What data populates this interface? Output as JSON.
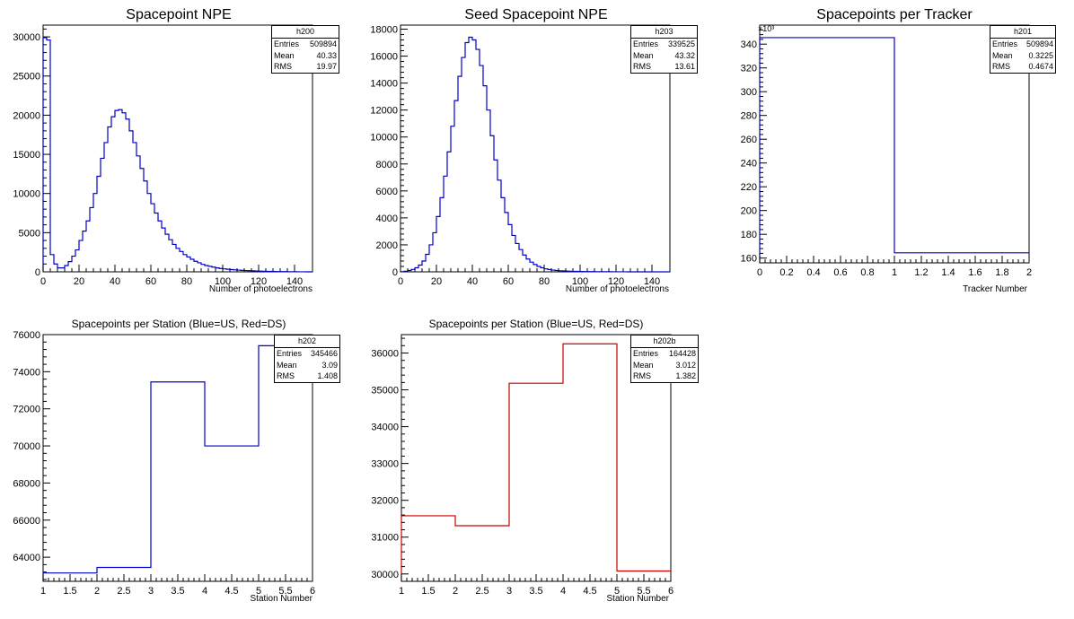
{
  "chart_data": [
    {
      "id": "h200",
      "type": "histogram",
      "title": "Spacepoint NPE",
      "xlabel": "Number of photoelectrons",
      "ylabel": "",
      "xlim": [
        0,
        150
      ],
      "ylim": [
        0,
        31500
      ],
      "xticks": [
        0,
        20,
        40,
        60,
        80,
        100,
        120,
        140
      ],
      "yticks": [
        0,
        5000,
        10000,
        15000,
        20000,
        25000,
        30000
      ],
      "xtick_labels": [
        "0",
        "20",
        "40",
        "60",
        "80",
        "100",
        "120",
        "140"
      ],
      "ytick_labels": [
        "0",
        "5000",
        "10000",
        "15000",
        "20000",
        "25000",
        "30000"
      ],
      "bin_width": 2,
      "color": "#0000cc",
      "values": [
        29900,
        29600,
        2200,
        1000,
        500,
        500,
        800,
        1300,
        2000,
        2800,
        4000,
        5200,
        6500,
        8200,
        10000,
        12200,
        14500,
        16500,
        18500,
        19800,
        20600,
        20700,
        20300,
        19500,
        18000,
        16500,
        14800,
        13200,
        11600,
        10000,
        8700,
        7500,
        6500,
        5600,
        4800,
        4100,
        3500,
        3000,
        2600,
        2200,
        1900,
        1600,
        1350,
        1150,
        950,
        800,
        700,
        600,
        500,
        430,
        380,
        330,
        290,
        250,
        220,
        190,
        165,
        145,
        125,
        105,
        90,
        78,
        66,
        56,
        46,
        38,
        32,
        26,
        20,
        15,
        11,
        7,
        5,
        3,
        2
      ],
      "stats": {
        "name": "h200",
        "entries": "509894",
        "mean": "40.33",
        "rms": "19.97"
      }
    },
    {
      "id": "h203",
      "type": "histogram",
      "title": "Seed Spacepoint NPE",
      "xlabel": "Number of photoelectrons",
      "ylabel": "",
      "xlim": [
        0,
        150
      ],
      "ylim": [
        0,
        18300
      ],
      "xticks": [
        0,
        20,
        40,
        60,
        80,
        100,
        120,
        140
      ],
      "yticks": [
        0,
        2000,
        4000,
        6000,
        8000,
        10000,
        12000,
        14000,
        16000,
        18000
      ],
      "xtick_labels": [
        "0",
        "20",
        "40",
        "60",
        "80",
        "100",
        "120",
        "140"
      ],
      "ytick_labels": [
        "0",
        "2000",
        "4000",
        "6000",
        "8000",
        "10000",
        "12000",
        "14000",
        "16000",
        "18000"
      ],
      "bin_width": 2,
      "color": "#0000cc",
      "values": [
        10,
        40,
        100,
        180,
        300,
        500,
        800,
        1300,
        2000,
        2900,
        4100,
        5500,
        7100,
        8900,
        10800,
        12700,
        14500,
        15900,
        17000,
        17400,
        17200,
        16500,
        15300,
        13800,
        12000,
        10100,
        8300,
        6800,
        5500,
        4400,
        3500,
        2700,
        2100,
        1650,
        1250,
        950,
        720,
        540,
        400,
        300,
        220,
        170,
        130,
        100,
        80,
        65,
        55,
        45,
        38,
        32,
        26,
        22,
        18,
        15,
        12,
        10,
        8,
        7,
        6,
        5,
        4,
        3,
        3,
        2,
        2,
        2,
        1,
        1,
        1,
        1,
        0,
        0,
        0,
        0,
        0
      ],
      "stats": {
        "name": "h203",
        "entries": "339525",
        "mean": "43.32",
        "rms": "13.61"
      }
    },
    {
      "id": "h201",
      "type": "histogram",
      "title": "Spacepoints per Tracker",
      "xlabel": "Tracker Number",
      "ylabel": "",
      "xlim": [
        0,
        2
      ],
      "ylim": [
        156,
        356
      ],
      "yscale_label": "×10³",
      "xticks": [
        0,
        0.2,
        0.4,
        0.6,
        0.8,
        1,
        1.2,
        1.4,
        1.6,
        1.8,
        2
      ],
      "yticks": [
        160,
        180,
        200,
        220,
        240,
        260,
        280,
        300,
        320,
        340
      ],
      "xtick_labels": [
        "0",
        "0.2",
        "0.4",
        "0.6",
        "0.8",
        "1",
        "1.2",
        "1.4",
        "1.6",
        "1.8",
        "2"
      ],
      "ytick_labels": [
        "160",
        "180",
        "200",
        "220",
        "240",
        "260",
        "280",
        "300",
        "320",
        "340"
      ],
      "bin_width": 1,
      "color": "#0000cc",
      "values": [
        345.466,
        164.428
      ],
      "stats": {
        "name": "h201",
        "entries": "509894",
        "mean": "0.3225",
        "rms": "0.4674"
      }
    },
    {
      "id": "h202",
      "type": "histogram",
      "title": "Spacepoints per Station (Blue=US, Red=DS)",
      "xlabel": "Station Number",
      "ylabel": "",
      "xlim": [
        1,
        6
      ],
      "ylim": [
        62700,
        76000
      ],
      "xticks": [
        1,
        1.5,
        2,
        2.5,
        3,
        3.5,
        4,
        4.5,
        5,
        5.5,
        6
      ],
      "yticks": [
        64000,
        66000,
        68000,
        70000,
        72000,
        74000,
        76000
      ],
      "xtick_labels": [
        "1",
        "1.5",
        "2",
        "2.5",
        "3",
        "3.5",
        "4",
        "4.5",
        "5",
        "5.5",
        "6"
      ],
      "ytick_labels": [
        "64000",
        "66000",
        "68000",
        "70000",
        "72000",
        "74000",
        "76000"
      ],
      "bin_width": 1,
      "color": "#0000cc",
      "values": [
        63150,
        63450,
        73450,
        70000,
        75400
      ],
      "stats": {
        "name": "h202",
        "entries": "345466",
        "mean": "3.09",
        "rms": "1.408"
      }
    },
    {
      "id": "h202b",
      "type": "histogram",
      "title": "Spacepoints per Station (Blue=US, Red=DS)",
      "xlabel": "Station Number",
      "ylabel": "",
      "xlim": [
        1,
        6
      ],
      "ylim": [
        29800,
        36500
      ],
      "xticks": [
        1,
        1.5,
        2,
        2.5,
        3,
        3.5,
        4,
        4.5,
        5,
        5.5,
        6
      ],
      "yticks": [
        30000,
        31000,
        32000,
        33000,
        34000,
        35000,
        36000
      ],
      "xtick_labels": [
        "1",
        "1.5",
        "2",
        "2.5",
        "3",
        "3.5",
        "4",
        "4.5",
        "5",
        "5.5",
        "6"
      ],
      "ytick_labels": [
        "30000",
        "31000",
        "32000",
        "33000",
        "34000",
        "35000",
        "36000"
      ],
      "bin_width": 1,
      "color": "#cc0000",
      "values": [
        31580,
        31310,
        35180,
        36250,
        30080
      ],
      "stats": {
        "name": "h202b",
        "entries": "164428",
        "mean": "3.012",
        "rms": "1.382"
      }
    }
  ],
  "labels": {
    "entries": "Entries",
    "mean": "Mean",
    "rms": "RMS"
  }
}
